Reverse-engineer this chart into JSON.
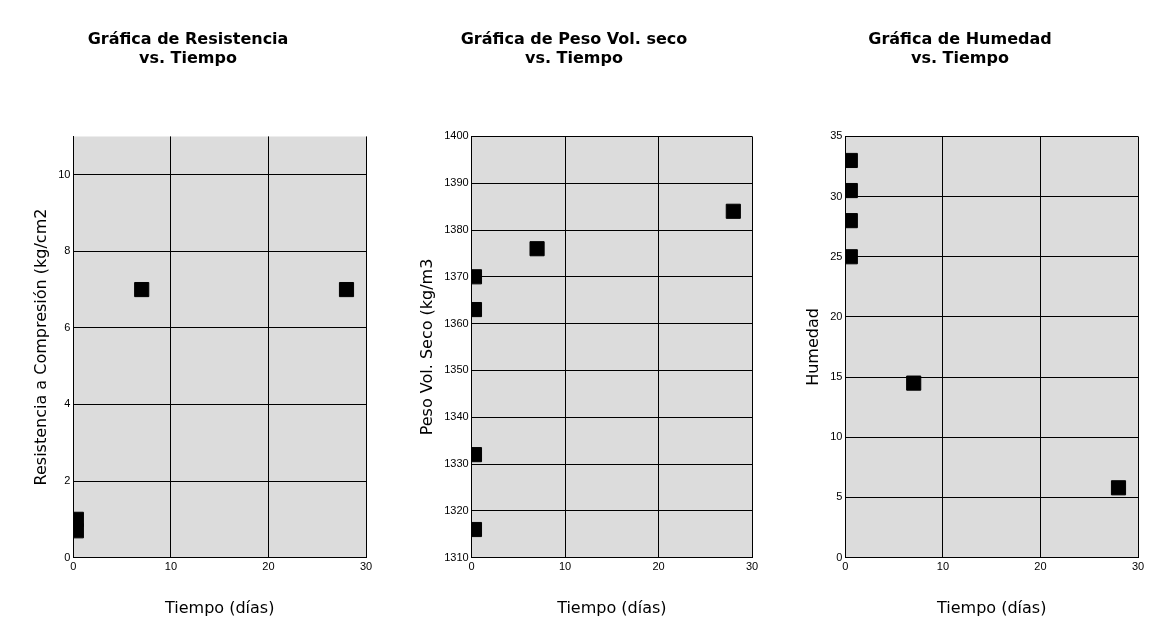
{
  "chart_data": [
    {
      "type": "scatter",
      "title": "Gráfica de Resistencia\nvs. Tiempo",
      "xlabel": "Tiempo (días)",
      "ylabel": "Resistencia a Compresión (kg/cm2",
      "x": [
        0.3,
        0.3,
        7,
        28
      ],
      "values": [
        0.7,
        1.0,
        7,
        7
      ],
      "color": "#000000",
      "marker": "square",
      "grid": true,
      "xlim": [
        0,
        30
      ],
      "xticks": [
        0,
        10,
        20,
        30
      ],
      "ylim": [
        0,
        11
      ],
      "yticks": [
        0,
        2,
        4,
        6,
        8,
        10
      ]
    },
    {
      "type": "scatter",
      "title": "Gráfica de Peso Vol. seco\nvs. Tiempo",
      "xlabel": "Tiempo (días)",
      "ylabel": "Peso Vol. Seco (kg/m3",
      "x": [
        0.3,
        0.3,
        0.3,
        0.3,
        7,
        28
      ],
      "values": [
        1370,
        1363,
        1332,
        1316,
        1376,
        1384
      ],
      "color": "#000000",
      "marker": "square",
      "grid": true,
      "xlim": [
        0,
        30
      ],
      "xticks": [
        0,
        10,
        20,
        30
      ],
      "ylim": [
        1310,
        1400
      ],
      "yticks": [
        1310,
        1320,
        1330,
        1340,
        1350,
        1360,
        1370,
        1380,
        1390,
        1400
      ]
    },
    {
      "type": "scatter",
      "title": "Gráfica de Humedad\nvs. Tiempo",
      "xlabel": "Tiempo (días)",
      "ylabel": "Humedad",
      "x": [
        0.5,
        0.5,
        0.5,
        0.5,
        7,
        28
      ],
      "values": [
        33,
        30.5,
        28,
        25,
        14.5,
        5.8
      ],
      "color": "#000000",
      "marker": "square",
      "grid": true,
      "xlim": [
        0,
        30
      ],
      "xticks": [
        0,
        10,
        20,
        30
      ],
      "ylim": [
        0,
        35
      ],
      "yticks": [
        0,
        5,
        10,
        15,
        20,
        25,
        30,
        35
      ]
    }
  ]
}
